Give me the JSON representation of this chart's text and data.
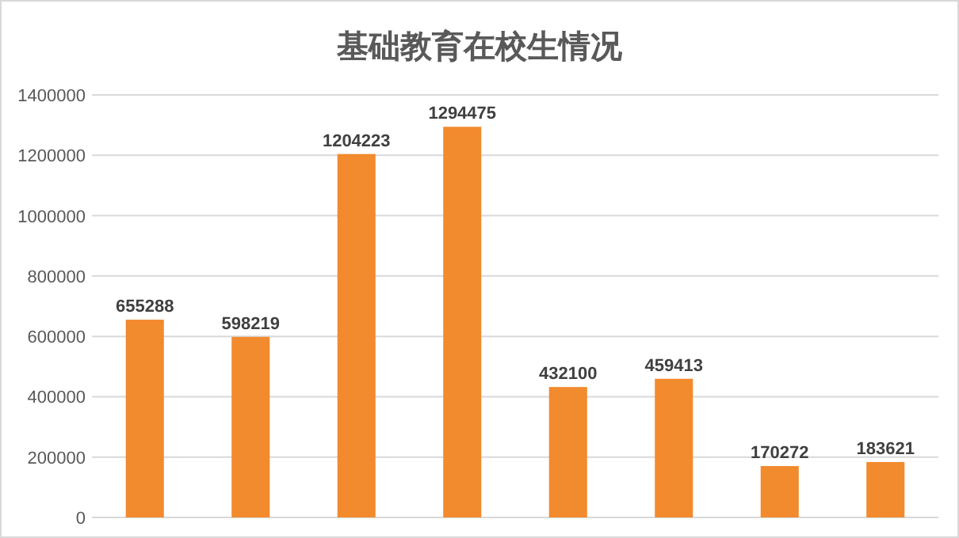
{
  "chart_data": {
    "type": "bar",
    "title": "基础教育在校生情况",
    "categories": [
      null,
      null,
      null,
      null,
      null,
      null,
      null,
      null
    ],
    "values": [
      655288,
      598219,
      1204223,
      1294475,
      432100,
      459413,
      170272,
      183621
    ],
    "color": "#f28a2e",
    "ylim": [
      0,
      1400000
    ],
    "yticks": [
      0,
      200000,
      400000,
      600000,
      800000,
      1000000,
      1200000,
      1400000
    ],
    "grid": "y",
    "data_labels": true
  }
}
